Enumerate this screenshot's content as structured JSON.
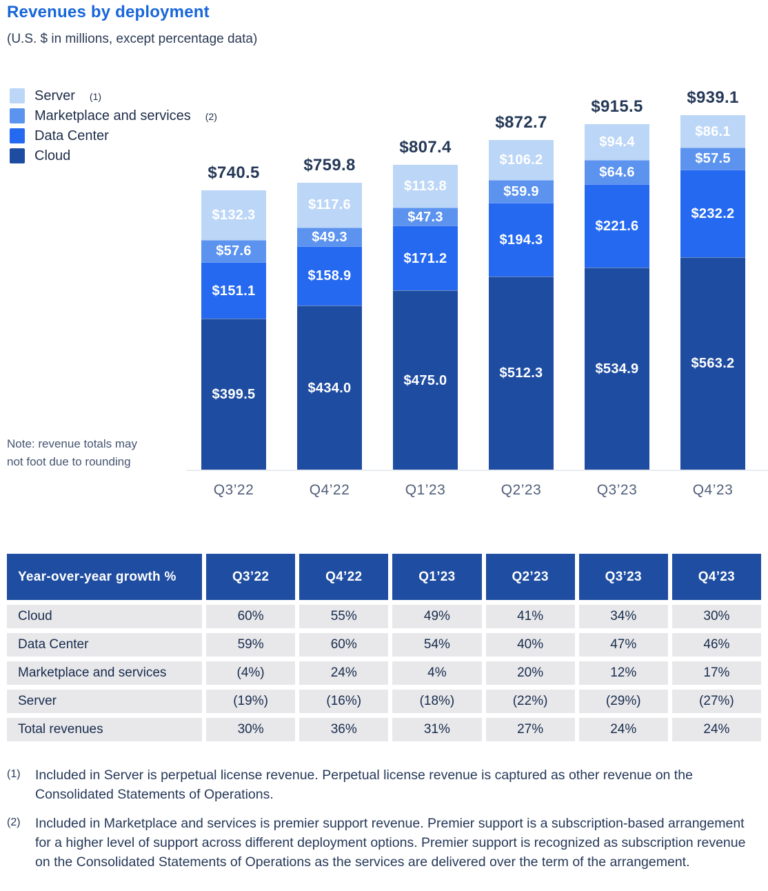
{
  "title": "Revenues by deployment",
  "subtitle": "(U.S. $ in millions, except percentage data)",
  "note": "Note: revenue totals may not foot due to rounding",
  "colors": {
    "server": "#BCD6F7",
    "marketplace": "#5B93EE",
    "datacenter": "#2569F0",
    "cloud": "#1E4CA0",
    "title_accent": "#1766D9",
    "table_header_bg": "#1E4DA1",
    "table_cell_bg": "#E8E8EA",
    "total_label_text": "#253858",
    "axis_label_text": "#505F79"
  },
  "chart_data": {
    "type": "bar",
    "stacked": true,
    "title": "Revenues by deployment",
    "unit": "U.S. $ in millions",
    "value_prefix": "$",
    "legend_position": "top-left",
    "grid": false,
    "categories": [
      "Q3’22",
      "Q4’22",
      "Q1’23",
      "Q2’23",
      "Q3’23",
      "Q4’23"
    ],
    "series": [
      {
        "key": "server",
        "name": "Server",
        "footnote_ref": "(1)",
        "values": [
          132.3,
          117.6,
          113.8,
          106.2,
          94.4,
          86.1
        ]
      },
      {
        "key": "marketplace",
        "name": "Marketplace and services",
        "footnote_ref": "(2)",
        "values": [
          57.6,
          49.3,
          47.3,
          59.9,
          64.6,
          57.5
        ]
      },
      {
        "key": "datacenter",
        "name": "Data Center",
        "values": [
          151.1,
          158.9,
          171.2,
          194.3,
          221.6,
          232.2
        ]
      },
      {
        "key": "cloud",
        "name": "Cloud",
        "values": [
          399.5,
          434.0,
          475.0,
          512.3,
          534.9,
          563.2
        ]
      }
    ],
    "totals": [
      740.5,
      759.8,
      807.4,
      872.7,
      915.5,
      939.1
    ]
  },
  "table": {
    "header": [
      "Year-over-year growth %",
      "Q3’22",
      "Q4’22",
      "Q1’23",
      "Q2’23",
      "Q3’23",
      "Q4’23"
    ],
    "rows": [
      {
        "label": "Cloud",
        "values": [
          "60%",
          "55%",
          "49%",
          "41%",
          "34%",
          "30%"
        ]
      },
      {
        "label": "Data Center",
        "values": [
          "59%",
          "60%",
          "54%",
          "40%",
          "47%",
          "46%"
        ]
      },
      {
        "label": "Marketplace and services",
        "values": [
          "(4%)",
          "24%",
          "4%",
          "20%",
          "12%",
          "17%"
        ]
      },
      {
        "label": "Server",
        "values": [
          "(19%)",
          "(16%)",
          "(18%)",
          "(22%)",
          "(29%)",
          "(27%)"
        ]
      },
      {
        "label": "Total revenues",
        "values": [
          "30%",
          "36%",
          "31%",
          "27%",
          "24%",
          "24%"
        ]
      }
    ]
  },
  "footnotes": [
    {
      "marker": "(1)",
      "text": "Included in Server is perpetual license revenue. Perpetual license revenue is captured as other revenue on the Consolidated Statements of Operations."
    },
    {
      "marker": "(2)",
      "text": "Included in Marketplace and services is premier support revenue. Premier support is a subscription-based arrangement for a higher level of support across different deployment options. Premier support is recognized as subscription revenue on the Consolidated Statements of Operations as the services are delivered over the term of the arrangement."
    }
  ]
}
